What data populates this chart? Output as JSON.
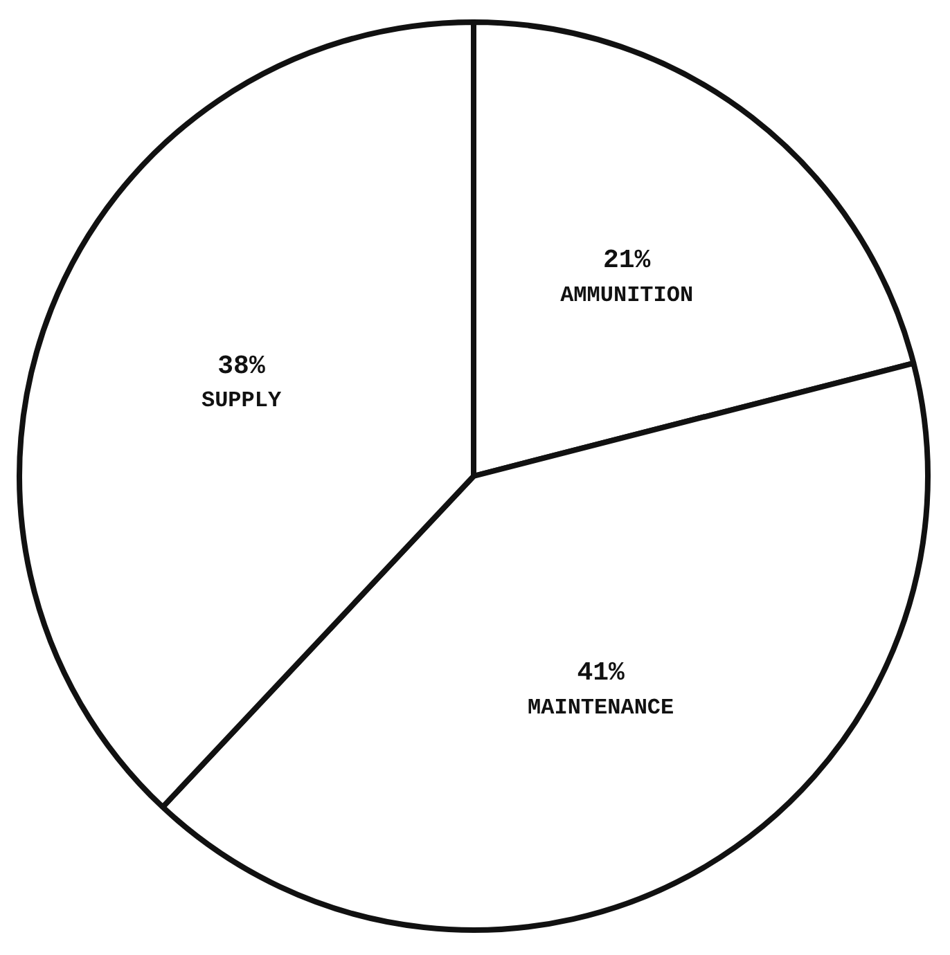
{
  "chart_data": {
    "type": "pie",
    "categories": [
      "AMMUNITION",
      "MAINTENANCE",
      "SUPPLY"
    ],
    "values": [
      21,
      41,
      38
    ],
    "colors": [
      "#ffffff",
      "#ffffff",
      "#ffffff"
    ],
    "value_labels": [
      "21%",
      "41%",
      "38%"
    ],
    "legend": false
  }
}
